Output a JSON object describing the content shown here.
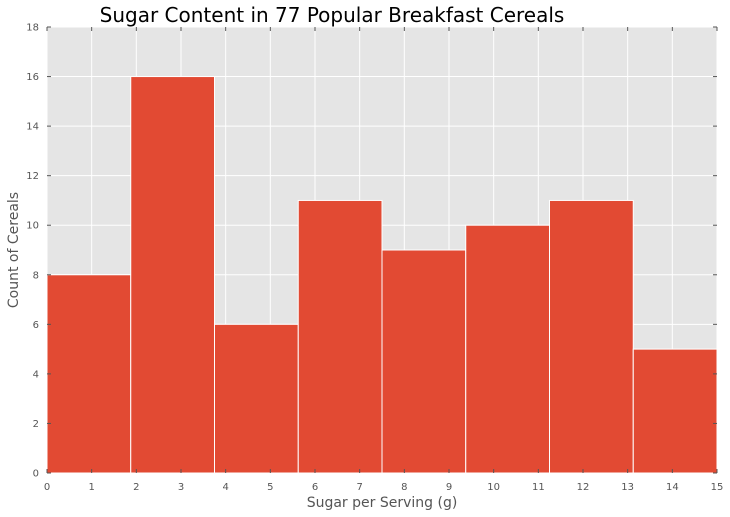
{
  "chart_data": {
    "type": "bar",
    "title": "Sugar Content in 77 Popular Breakfast Cereals",
    "xlabel": "Sugar per Serving (g)",
    "ylabel": "Count of Cereals",
    "xlim": [
      0,
      15
    ],
    "ylim": [
      0,
      18
    ],
    "xticks": [
      "0",
      "1",
      "2",
      "3",
      "4",
      "5",
      "6",
      "7",
      "8",
      "9",
      "10",
      "11",
      "12",
      "13",
      "14",
      "15"
    ],
    "yticks": [
      "0",
      "2",
      "4",
      "6",
      "8",
      "10",
      "12",
      "14",
      "16",
      "18"
    ],
    "bins": [
      {
        "x0": 0,
        "x1": 1.875,
        "count": 8
      },
      {
        "x0": 1.875,
        "x1": 3.75,
        "count": 16
      },
      {
        "x0": 3.75,
        "x1": 5.625,
        "count": 6
      },
      {
        "x0": 5.625,
        "x1": 7.5,
        "count": 11
      },
      {
        "x0": 7.5,
        "x1": 9.375,
        "count": 9
      },
      {
        "x0": 9.375,
        "x1": 11.25,
        "count": 10
      },
      {
        "x0": 11.25,
        "x1": 13.125,
        "count": 11
      },
      {
        "x0": 13.125,
        "x1": 15,
        "count": 5
      }
    ],
    "grid": true,
    "colors": {
      "bar": "#E24A33",
      "plot_background": "#E5E5E5",
      "grid": "#FFFFFF"
    }
  }
}
